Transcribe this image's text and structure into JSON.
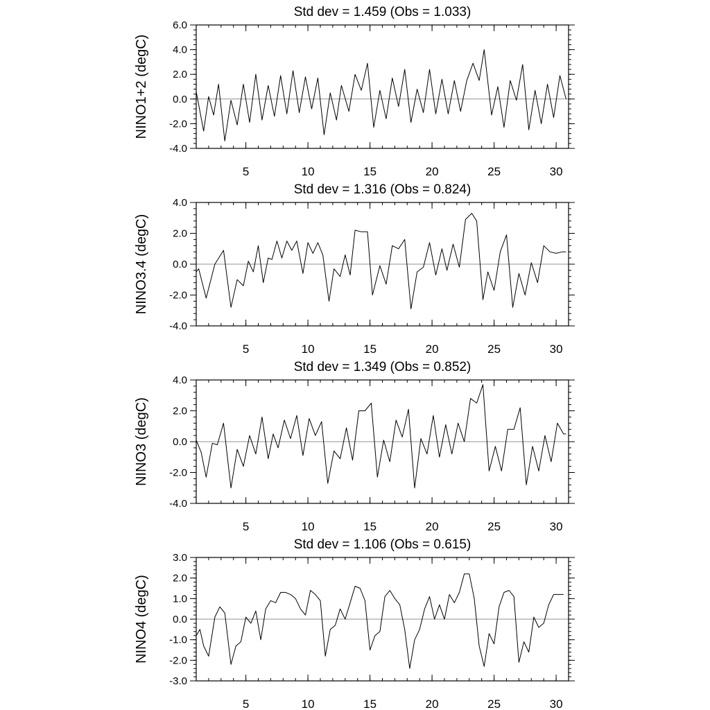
{
  "chart_data": [
    {
      "type": "line",
      "title": "Std dev = 1.459 (Obs = 1.033)",
      "xlabel": "",
      "ylabel": "NINO1+2 (degC)",
      "xlim": [
        1,
        31
      ],
      "ylim": [
        -4.0,
        6.0
      ],
      "yticks": [
        -4.0,
        -2.0,
        0.0,
        2.0,
        4.0,
        6.0
      ],
      "ytick_labels": [
        "-4.0",
        "-2.0",
        "0.0",
        "2.0",
        "4.0",
        "6.0"
      ],
      "xticks": [
        5,
        10,
        15,
        20,
        25,
        30
      ],
      "xtick_labels": [
        "5",
        "10",
        "15",
        "20",
        "25",
        "30"
      ],
      "reference_line": 0.0,
      "grid": false,
      "series": [
        {
          "x": [
            1.0,
            1.6,
            2.0,
            2.4,
            2.8,
            3.3,
            3.8,
            4.3,
            4.8,
            5.3,
            5.8,
            6.3,
            6.8,
            7.3,
            7.8,
            8.3,
            8.8,
            9.3,
            9.8,
            10.3,
            10.8,
            11.3,
            11.8,
            12.3,
            12.7,
            13.3,
            13.8,
            14.3,
            14.8,
            15.3,
            15.8,
            16.3,
            16.8,
            17.3,
            17.8,
            18.3,
            18.8,
            19.3,
            19.8,
            20.3,
            20.8,
            21.3,
            21.8,
            22.3,
            22.8,
            23.3,
            23.8,
            24.2,
            24.8,
            25.3,
            25.8,
            26.3,
            26.8,
            27.3,
            27.8,
            28.3,
            28.8,
            29.3,
            29.8,
            30.3,
            30.8
          ],
          "y": [
            0.6,
            -2.6,
            0.2,
            -1.3,
            1.2,
            -3.4,
            -0.1,
            -2.1,
            1.2,
            -1.9,
            2.0,
            -1.7,
            1.1,
            -1.4,
            1.9,
            -1.2,
            2.3,
            -1.1,
            1.8,
            -0.8,
            1.7,
            -2.9,
            0.5,
            -1.7,
            1.1,
            -1.0,
            2.0,
            0.7,
            2.9,
            -2.3,
            0.7,
            -1.6,
            1.7,
            -0.6,
            2.4,
            -1.9,
            0.8,
            -1.1,
            2.4,
            -1.2,
            1.6,
            -1.2,
            1.5,
            -1.0,
            1.5,
            2.9,
            1.5,
            4.0,
            -1.3,
            1.0,
            -2.3,
            1.5,
            -0.1,
            2.8,
            -2.5,
            0.7,
            -2.0,
            1.2,
            -1.5,
            1.9,
            0.0
          ]
        }
      ]
    },
    {
      "type": "line",
      "title": "Std dev = 1.316 (Obs = 0.824)",
      "xlabel": "",
      "ylabel": "NINO3.4 (degC)",
      "xlim": [
        1,
        31
      ],
      "ylim": [
        -4.0,
        4.0
      ],
      "yticks": [
        -4.0,
        -2.0,
        0.0,
        2.0,
        4.0
      ],
      "ytick_labels": [
        "-4.0",
        "-2.0",
        "0.0",
        "2.0",
        "4.0"
      ],
      "xticks": [
        5,
        10,
        15,
        20,
        25,
        30
      ],
      "xtick_labels": [
        "5",
        "10",
        "15",
        "20",
        "25",
        "30"
      ],
      "reference_line": 0.0,
      "grid": false,
      "series": [
        {
          "x": [
            1.0,
            1.2,
            1.8,
            2.5,
            3.2,
            3.8,
            4.3,
            4.8,
            5.2,
            5.6,
            6.0,
            6.4,
            6.8,
            7.1,
            7.5,
            7.9,
            8.3,
            8.7,
            9.1,
            9.6,
            10.0,
            10.4,
            10.8,
            11.2,
            11.7,
            12.1,
            12.6,
            13.0,
            13.4,
            13.8,
            14.3,
            14.8,
            15.2,
            15.8,
            16.3,
            16.8,
            17.3,
            17.8,
            18.3,
            18.8,
            19.3,
            19.8,
            20.3,
            20.8,
            21.2,
            21.7,
            22.2,
            22.7,
            23.2,
            23.6,
            24.1,
            24.5,
            25.0,
            25.5,
            26.0,
            26.5,
            27.0,
            27.5,
            28.0,
            28.5,
            29.0,
            29.5,
            30.0,
            30.5,
            30.8
          ],
          "y": [
            -0.5,
            -0.3,
            -2.2,
            0.0,
            0.9,
            -2.8,
            -1.0,
            -1.4,
            0.2,
            -0.5,
            1.2,
            -1.2,
            0.4,
            0.3,
            1.5,
            0.4,
            1.5,
            0.9,
            1.5,
            -0.6,
            1.4,
            0.7,
            1.4,
            0.6,
            -2.4,
            -0.3,
            -0.8,
            0.6,
            -0.7,
            2.2,
            2.1,
            2.1,
            -2.0,
            -0.1,
            -1.3,
            1.2,
            1.0,
            1.6,
            -2.9,
            -0.5,
            -0.2,
            1.4,
            -0.7,
            1.0,
            -0.4,
            1.3,
            -0.2,
            2.9,
            3.3,
            2.8,
            -2.3,
            -0.5,
            -1.7,
            0.8,
            1.9,
            -2.8,
            -0.6,
            -2.0,
            0.1,
            -1.2,
            1.2,
            0.8,
            0.7,
            0.8,
            0.8
          ]
        }
      ]
    },
    {
      "type": "line",
      "title": "Std dev = 1.349 (Obs = 0.852)",
      "xlabel": "",
      "ylabel": "NINO3 (degC)",
      "xlim": [
        1,
        31
      ],
      "ylim": [
        -4.0,
        4.0
      ],
      "yticks": [
        -4.0,
        -2.0,
        0.0,
        2.0,
        4.0
      ],
      "ytick_labels": [
        "-4.0",
        "-2.0",
        "0.0",
        "2.0",
        "4.0"
      ],
      "xticks": [
        5,
        10,
        15,
        20,
        25,
        30
      ],
      "xtick_labels": [
        "5",
        "10",
        "15",
        "20",
        "25",
        "30"
      ],
      "reference_line": 0.0,
      "grid": false,
      "series": [
        {
          "x": [
            1.0,
            1.4,
            1.8,
            2.3,
            2.7,
            3.2,
            3.8,
            4.3,
            4.8,
            5.3,
            5.8,
            6.3,
            6.8,
            7.2,
            7.6,
            8.1,
            8.6,
            9.1,
            9.6,
            10.1,
            10.6,
            11.1,
            11.6,
            12.1,
            12.6,
            13.1,
            13.6,
            14.1,
            14.6,
            15.1,
            15.6,
            16.1,
            16.6,
            17.1,
            17.6,
            18.1,
            18.6,
            19.1,
            19.6,
            20.1,
            20.6,
            21.1,
            21.6,
            22.1,
            22.6,
            23.1,
            23.6,
            24.1,
            24.6,
            25.1,
            25.6,
            26.1,
            26.6,
            27.1,
            27.6,
            28.1,
            28.6,
            29.1,
            29.6,
            30.1,
            30.6,
            30.8
          ],
          "y": [
            0.1,
            -0.7,
            -2.3,
            -0.1,
            -0.2,
            1.2,
            -3.0,
            -0.5,
            -1.6,
            0.4,
            -0.8,
            1.6,
            -1.1,
            0.5,
            -0.4,
            1.4,
            0.2,
            1.7,
            -0.9,
            1.5,
            0.4,
            1.3,
            -2.7,
            -0.6,
            -1.1,
            0.9,
            -1.2,
            2.0,
            2.0,
            2.5,
            -2.3,
            0.1,
            -1.3,
            1.4,
            0.3,
            2.1,
            -3.0,
            0.2,
            -0.8,
            1.7,
            -1.0,
            1.1,
            -0.8,
            1.2,
            0.0,
            2.8,
            2.5,
            3.7,
            -1.9,
            -0.3,
            -1.9,
            0.8,
            0.8,
            2.2,
            -2.8,
            -0.3,
            -1.9,
            0.4,
            -1.3,
            1.2,
            0.5,
            0.5
          ]
        }
      ]
    },
    {
      "type": "line",
      "title": "Std dev = 1.106 (Obs = 0.615)",
      "xlabel": "",
      "ylabel": "NINO4 (degC)",
      "xlim": [
        1,
        31
      ],
      "ylim": [
        -3.0,
        3.0
      ],
      "yticks": [
        -3.0,
        -2.0,
        -1.0,
        0.0,
        1.0,
        2.0,
        3.0
      ],
      "ytick_labels": [
        "-3.0",
        "-2.0",
        "-1.0",
        "0.0",
        "1.0",
        "2.0",
        "3.0"
      ],
      "xticks": [
        5,
        10,
        15,
        20,
        25,
        30
      ],
      "xtick_labels": [
        "5",
        "10",
        "15",
        "20",
        "25",
        "30"
      ],
      "reference_line": 0.0,
      "grid": false,
      "series": [
        {
          "x": [
            1.0,
            1.3,
            1.6,
            2.0,
            2.5,
            2.9,
            3.3,
            3.8,
            4.2,
            4.6,
            5.0,
            5.4,
            5.8,
            6.2,
            6.6,
            7.0,
            7.4,
            7.8,
            8.2,
            8.6,
            9.0,
            9.4,
            9.8,
            10.2,
            10.6,
            11.0,
            11.4,
            11.8,
            12.2,
            12.6,
            13.0,
            13.4,
            13.8,
            14.2,
            14.6,
            15.0,
            15.4,
            15.8,
            16.2,
            16.6,
            17.0,
            17.4,
            17.8,
            18.2,
            18.6,
            19.0,
            19.4,
            19.8,
            20.2,
            20.6,
            21.0,
            21.4,
            21.8,
            22.2,
            22.6,
            23.0,
            23.4,
            23.8,
            24.2,
            24.6,
            25.0,
            25.4,
            25.8,
            26.2,
            26.6,
            27.0,
            27.4,
            27.8,
            28.2,
            28.6,
            29.0,
            29.4,
            29.8,
            30.2,
            30.6
          ],
          "y": [
            -0.8,
            -0.5,
            -1.3,
            -1.8,
            0.1,
            0.6,
            0.3,
            -2.2,
            -1.3,
            -1.1,
            0.1,
            -0.2,
            0.4,
            -1.0,
            0.5,
            0.9,
            0.8,
            1.3,
            1.3,
            1.2,
            1.0,
            0.5,
            0.2,
            1.4,
            1.2,
            0.9,
            -1.8,
            -0.5,
            -0.3,
            0.5,
            0.0,
            0.8,
            1.6,
            1.5,
            0.9,
            -1.5,
            -0.8,
            -0.6,
            1.1,
            1.4,
            1.0,
            0.7,
            -0.5,
            -2.4,
            -1.0,
            -0.5,
            0.5,
            1.1,
            0.0,
            0.7,
            0.0,
            1.2,
            0.8,
            1.3,
            2.2,
            2.2,
            1.0,
            -1.3,
            -2.3,
            -0.7,
            -1.2,
            0.6,
            1.3,
            1.4,
            1.1,
            -2.1,
            -1.1,
            -1.6,
            0.1,
            -0.4,
            -0.2,
            0.7,
            1.2,
            1.2,
            1.2
          ]
        }
      ]
    }
  ]
}
